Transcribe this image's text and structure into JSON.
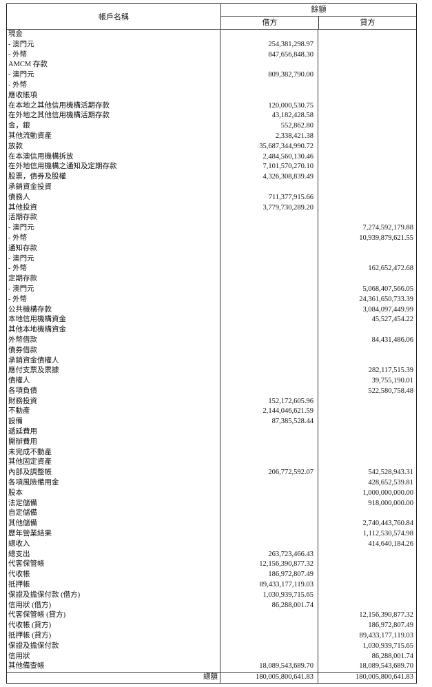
{
  "header": {
    "account_name": "帳戶名稱",
    "balance": "餘額",
    "debit": "借方",
    "credit": "貸方"
  },
  "rows": [
    {
      "name": "現金",
      "debit": "",
      "credit": ""
    },
    {
      "name": " - 澳門元",
      "debit": "254,381,298.97",
      "credit": ""
    },
    {
      "name": " - 外幣",
      "debit": "847,656,848.30",
      "credit": ""
    },
    {
      "name": "AMCM 存款",
      "debit": "",
      "credit": ""
    },
    {
      "name": " - 澳門元",
      "debit": "809,382,790.00",
      "credit": ""
    },
    {
      "name": " - 外幣",
      "debit": "",
      "credit": ""
    },
    {
      "name": "應收賬項",
      "debit": "",
      "credit": ""
    },
    {
      "name": "在本地之其他信用機構活期存款",
      "debit": "120,000,530.75",
      "credit": ""
    },
    {
      "name": "在外地之其他信用機構活期存款",
      "debit": "43,182,428.58",
      "credit": ""
    },
    {
      "name": "金，銀",
      "debit": "552,862.80",
      "credit": ""
    },
    {
      "name": "其他流動資產",
      "debit": "2,338,421.38",
      "credit": ""
    },
    {
      "name": "放款",
      "debit": "35,687,344,990.72",
      "credit": ""
    },
    {
      "name": "在本澳信用機構拆放",
      "debit": "2,484,560,130.46",
      "credit": ""
    },
    {
      "name": "在外地信用機構之通知及定期存款",
      "debit": "7,101,570,270.10",
      "credit": ""
    },
    {
      "name": "股票，債券及股權",
      "debit": "4,326,308,839.49",
      "credit": ""
    },
    {
      "name": "承銷資金投資",
      "debit": "",
      "credit": ""
    },
    {
      "name": "債務人",
      "debit": "711,377,915.66",
      "credit": ""
    },
    {
      "name": "其他投資",
      "debit": "3,779,730,289.20",
      "credit": ""
    },
    {
      "name": "活期存款",
      "debit": "",
      "credit": ""
    },
    {
      "name": " - 澳門元",
      "debit": "",
      "credit": "7,274,592,179.88"
    },
    {
      "name": " - 外幣",
      "debit": "",
      "credit": "10,939,879,621.55"
    },
    {
      "name": "通知存款",
      "debit": "",
      "credit": ""
    },
    {
      "name": " - 澳門元",
      "debit": "",
      "credit": ""
    },
    {
      "name": " - 外幣",
      "debit": "",
      "credit": "162,652,472.68"
    },
    {
      "name": "定期存款",
      "debit": "",
      "credit": ""
    },
    {
      "name": " - 澳門元",
      "debit": "",
      "credit": "5,068,407,566.05"
    },
    {
      "name": " - 外幣",
      "debit": "",
      "credit": "24,361,650,733.39"
    },
    {
      "name": "公共機構存款",
      "debit": "",
      "credit": "3,084,097,449.99"
    },
    {
      "name": "本地信用機構資金",
      "debit": "",
      "credit": "45,527,454.22"
    },
    {
      "name": "其他本地機構資金",
      "debit": "",
      "credit": ""
    },
    {
      "name": "外幣借款",
      "debit": "",
      "credit": "84,431,486.06"
    },
    {
      "name": "債券借款",
      "debit": "",
      "credit": ""
    },
    {
      "name": "承銷資金債權人",
      "debit": "",
      "credit": ""
    },
    {
      "name": "應付支票及票據",
      "debit": "",
      "credit": "282,117,515.39"
    },
    {
      "name": "債權人",
      "debit": "",
      "credit": "39,755,190.01"
    },
    {
      "name": "各項負債",
      "debit": "",
      "credit": "522,580,758.48"
    },
    {
      "name": "財務投資",
      "debit": "152,172,605.96",
      "credit": ""
    },
    {
      "name": "不動產",
      "debit": "2,144,046,621.59",
      "credit": ""
    },
    {
      "name": "設備",
      "debit": "87,385,528.44",
      "credit": ""
    },
    {
      "name": "遞延費用",
      "debit": "",
      "credit": ""
    },
    {
      "name": "開辦費用",
      "debit": "",
      "credit": ""
    },
    {
      "name": "未完成不動產",
      "debit": "",
      "credit": ""
    },
    {
      "name": "其他固定資產",
      "debit": "",
      "credit": ""
    },
    {
      "name": "內部及調整帳",
      "debit": "206,772,592.07",
      "credit": "542,528,943.31"
    },
    {
      "name": "各項風險備用金",
      "debit": "",
      "credit": "428,652,539.81"
    },
    {
      "name": "股本",
      "debit": "",
      "credit": "1,000,000,000.00"
    },
    {
      "name": "法定儲備",
      "debit": "",
      "credit": "918,000,000.00"
    },
    {
      "name": "自定儲備",
      "debit": "",
      "credit": ""
    },
    {
      "name": "其他儲備",
      "debit": "",
      "credit": "2,740,443,760.84"
    },
    {
      "name": "歷年營業結果",
      "debit": "",
      "credit": "1,112,530,574.98"
    },
    {
      "name": "總收入",
      "debit": "",
      "credit": "414,640,184.26"
    },
    {
      "name": "總支出",
      "debit": "263,723,466.43",
      "credit": ""
    },
    {
      "name": "代客保管帳",
      "debit": "12,156,390,877.32",
      "credit": ""
    },
    {
      "name": "代收帳",
      "debit": "186,972,807.49",
      "credit": ""
    },
    {
      "name": "抵押帳",
      "debit": "89,433,177,119.03",
      "credit": ""
    },
    {
      "name": "保證及擔保付款 (借方)",
      "debit": "1,030,939,715.65",
      "credit": ""
    },
    {
      "name": "信用狀 (借方)",
      "debit": "86,288,001.74",
      "credit": ""
    },
    {
      "name": "代客保管帳 (貸方)",
      "debit": "",
      "credit": "12,156,390,877.32"
    },
    {
      "name": "代收帳 (貸方)",
      "debit": "",
      "credit": "186,972,807.49"
    },
    {
      "name": "抵押帳 (貸方)",
      "debit": "",
      "credit": "89,433,177,119.03"
    },
    {
      "name": "保證及擔保付款",
      "debit": "",
      "credit": "1,030,939,715.65"
    },
    {
      "name": "信用狀",
      "debit": "",
      "credit": "86,288,001.74"
    },
    {
      "name": "其他備查帳",
      "debit": "18,089,543,689.70",
      "credit": "18,089,543,689.70"
    }
  ],
  "total": {
    "label": "總額",
    "debit": "180,005,800,641.83",
    "credit": "180,005,800,641.83"
  }
}
